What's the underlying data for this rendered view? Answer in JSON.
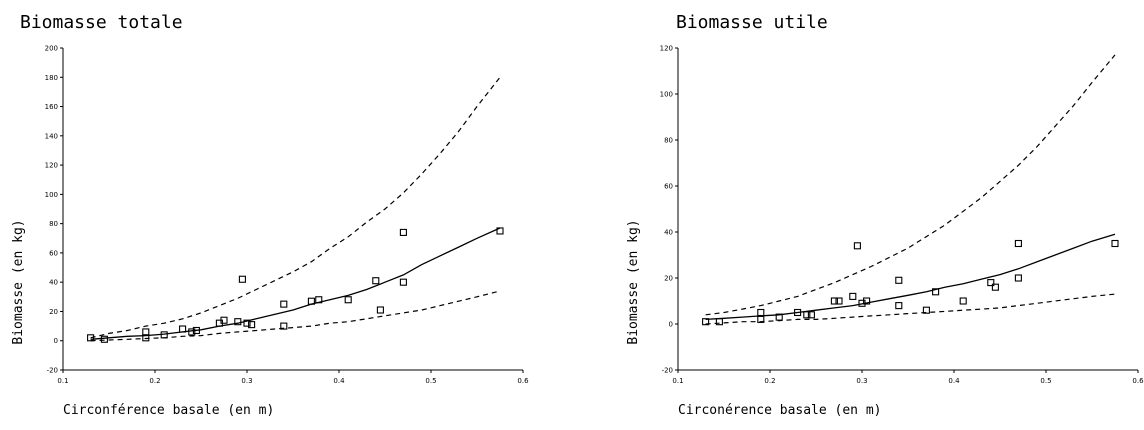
{
  "chart_data": [
    {
      "type": "scatter",
      "title": "Biomasse totale",
      "xlabel": "Circonférence basale (en m)",
      "ylabel": "Biomasse (en kg)",
      "xlim": [
        0.1,
        0.6
      ],
      "ylim": [
        -20,
        200
      ],
      "xticks": [
        "0.1",
        "0.2",
        "0.3",
        "0.4",
        "0.5",
        "0.6"
      ],
      "yticks": [
        "-20",
        "0",
        "20",
        "40",
        "60",
        "80",
        "100",
        "120",
        "140",
        "160",
        "180",
        "200"
      ],
      "series": [
        {
          "kind": "points",
          "marker": "square",
          "x": [
            0.13,
            0.145,
            0.19,
            0.19,
            0.21,
            0.23,
            0.24,
            0.245,
            0.27,
            0.275,
            0.29,
            0.295,
            0.3,
            0.305,
            0.34,
            0.34,
            0.37,
            0.378,
            0.41,
            0.44,
            0.445,
            0.47,
            0.47,
            0.575
          ],
          "y": [
            2,
            1,
            6,
            2,
            4,
            8,
            6,
            7,
            12,
            14,
            13,
            42,
            12,
            11,
            25,
            10,
            27,
            28,
            28,
            41,
            21,
            74,
            40,
            75
          ]
        },
        {
          "kind": "line",
          "style": "solid",
          "x": [
            0.13,
            0.15,
            0.17,
            0.19,
            0.21,
            0.23,
            0.25,
            0.27,
            0.29,
            0.31,
            0.33,
            0.35,
            0.37,
            0.39,
            0.41,
            0.43,
            0.45,
            0.47,
            0.49,
            0.51,
            0.53,
            0.55,
            0.575
          ],
          "y": [
            1,
            2,
            3,
            3.5,
            4.5,
            6,
            7.5,
            10,
            12,
            15,
            18,
            21,
            25,
            28,
            31,
            35,
            40,
            45,
            52,
            58,
            64,
            70,
            77
          ]
        },
        {
          "kind": "line",
          "style": "dashed",
          "x": [
            0.13,
            0.15,
            0.17,
            0.19,
            0.21,
            0.23,
            0.25,
            0.27,
            0.29,
            0.31,
            0.33,
            0.35,
            0.37,
            0.39,
            0.41,
            0.43,
            0.45,
            0.47,
            0.49,
            0.51,
            0.53,
            0.55,
            0.575
          ],
          "y": [
            2,
            5,
            7,
            10,
            12,
            15,
            19,
            24,
            29,
            35,
            41,
            47,
            54,
            63,
            71,
            81,
            90,
            101,
            114,
            128,
            143,
            160,
            180
          ]
        },
        {
          "kind": "line",
          "style": "dashed",
          "x": [
            0.13,
            0.15,
            0.17,
            0.19,
            0.21,
            0.23,
            0.25,
            0.27,
            0.29,
            0.31,
            0.33,
            0.35,
            0.37,
            0.39,
            0.41,
            0.43,
            0.45,
            0.47,
            0.49,
            0.51,
            0.53,
            0.55,
            0.575
          ],
          "y": [
            0,
            0.5,
            1,
            1.5,
            2,
            3,
            3.5,
            5,
            6,
            7,
            8,
            9,
            10,
            12,
            13,
            15,
            17,
            19,
            21,
            24,
            27,
            30,
            34
          ]
        }
      ]
    },
    {
      "type": "scatter",
      "title": "Biomasse utile",
      "xlabel": "Circonérence basale (en m)",
      "ylabel": "Biomasse (en kg)",
      "xlim": [
        0.1,
        0.6
      ],
      "ylim": [
        -20,
        120
      ],
      "xticks": [
        "0.1",
        "0.2",
        "0.3",
        "0.4",
        "0.5",
        "0.6"
      ],
      "yticks": [
        "-20",
        "0",
        "20",
        "40",
        "60",
        "80",
        "100",
        "120"
      ],
      "series": [
        {
          "kind": "points",
          "marker": "square",
          "x": [
            0.13,
            0.145,
            0.19,
            0.19,
            0.21,
            0.23,
            0.24,
            0.245,
            0.27,
            0.275,
            0.29,
            0.295,
            0.3,
            0.305,
            0.34,
            0.34,
            0.37,
            0.38,
            0.41,
            0.44,
            0.445,
            0.47,
            0.47,
            0.575
          ],
          "y": [
            1,
            1,
            5,
            2,
            3,
            5,
            4,
            4,
            10,
            10,
            12,
            34,
            9,
            10,
            19,
            8,
            6,
            14,
            10,
            18,
            16,
            35,
            20,
            35
          ]
        },
        {
          "kind": "line",
          "style": "solid",
          "x": [
            0.13,
            0.15,
            0.17,
            0.19,
            0.21,
            0.23,
            0.25,
            0.27,
            0.29,
            0.31,
            0.33,
            0.35,
            0.37,
            0.39,
            0.41,
            0.43,
            0.45,
            0.47,
            0.49,
            0.51,
            0.53,
            0.55,
            0.575
          ],
          "y": [
            2,
            2.5,
            3,
            3.5,
            4,
            5,
            6,
            7,
            8,
            9.5,
            11,
            12.5,
            14,
            16,
            17.5,
            19.5,
            21.5,
            24,
            27,
            30,
            33,
            36,
            39
          ]
        },
        {
          "kind": "line",
          "style": "dashed",
          "x": [
            0.13,
            0.15,
            0.17,
            0.19,
            0.21,
            0.23,
            0.25,
            0.27,
            0.29,
            0.31,
            0.33,
            0.35,
            0.37,
            0.39,
            0.41,
            0.43,
            0.45,
            0.47,
            0.49,
            0.51,
            0.53,
            0.55,
            0.575
          ],
          "y": [
            4,
            5,
            6.5,
            8,
            10,
            12,
            15,
            18,
            21.5,
            25,
            29,
            33,
            38,
            43,
            49,
            55,
            62,
            69,
            77,
            86,
            95,
            105,
            117
          ]
        },
        {
          "kind": "line",
          "style": "dashed",
          "x": [
            0.13,
            0.15,
            0.17,
            0.19,
            0.21,
            0.23,
            0.25,
            0.27,
            0.29,
            0.31,
            0.33,
            0.35,
            0.37,
            0.39,
            0.41,
            0.43,
            0.45,
            0.47,
            0.49,
            0.51,
            0.53,
            0.55,
            0.575
          ],
          "y": [
            0,
            0.5,
            1,
            1,
            1.5,
            2,
            2,
            2.5,
            3,
            3.5,
            4,
            4.5,
            5,
            5.5,
            6,
            6.5,
            7,
            8,
            9,
            10,
            11,
            12,
            13
          ]
        }
      ]
    }
  ]
}
